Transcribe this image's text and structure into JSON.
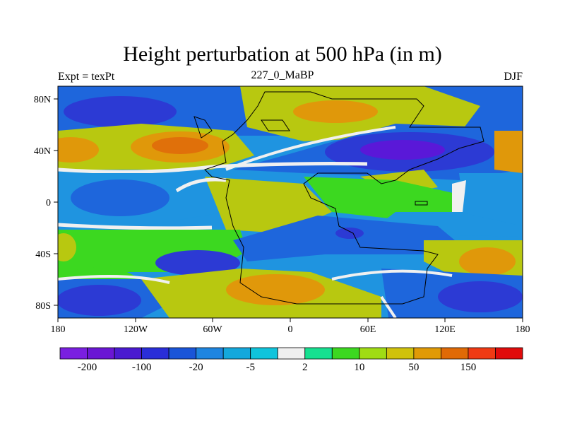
{
  "title": "Height perturbation at 500 hPa (in m)",
  "subtitle_left": "Expt = texPt",
  "subtitle_center": "227_0_MaBP",
  "subtitle_right": "DJF",
  "x_ticks": [
    "180",
    "120W",
    "60W",
    "0",
    "60E",
    "120E",
    "180"
  ],
  "y_ticks": [
    "80N",
    "40N",
    "0",
    "40S",
    "80S"
  ],
  "colorbar": {
    "colors": [
      "#7a1fe0",
      "#6a16d4",
      "#4a1ad0",
      "#2a2ed8",
      "#1a55d8",
      "#1e85e0",
      "#14a8dc",
      "#10c4dc",
      "#f0f0f0",
      "#16e090",
      "#3cd820",
      "#a0dc14",
      "#d0c20c",
      "#e09a06",
      "#e06a06",
      "#f03a14",
      "#e00c0c"
    ],
    "labels": [
      "-200",
      "-100",
      "-20",
      "-5",
      "2",
      "10",
      "50",
      "150"
    ]
  },
  "colors": {
    "neg_deep": "#5a18d8",
    "neg_strong": "#2c3ad4",
    "neg_mid": "#1e66dc",
    "neg_light": "#1f94e0",
    "neutral": "#f0f0f0",
    "pos_light": "#3cd820",
    "pos_mid": "#b8c810",
    "pos_strong": "#e0980a",
    "pos_deep": "#e0700a"
  }
}
